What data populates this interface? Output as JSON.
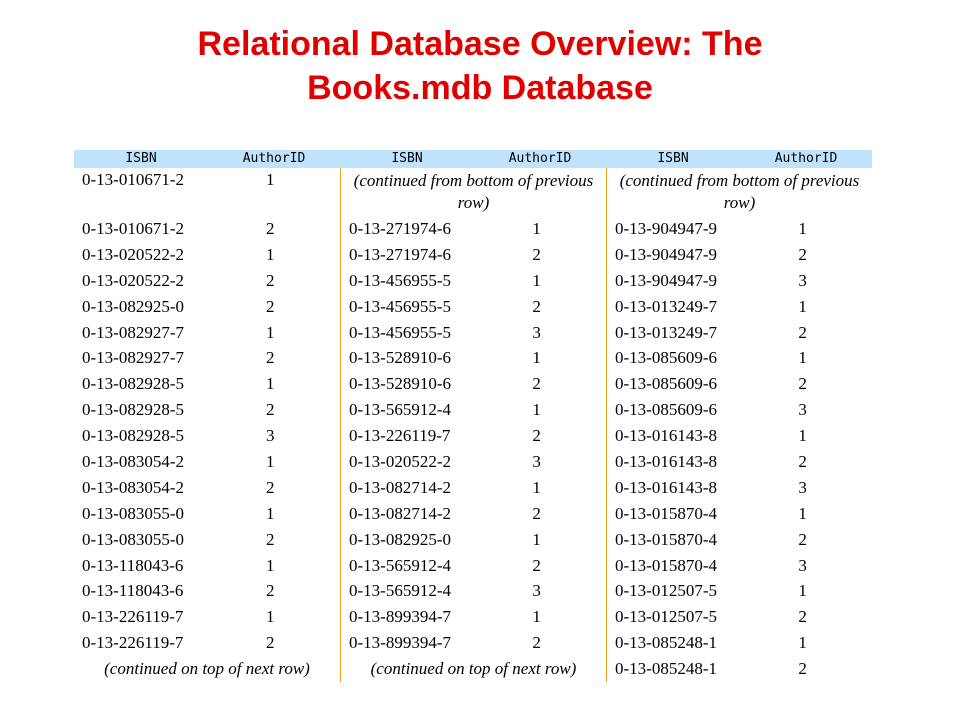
{
  "title": {
    "line1": "Relational Database Overview: The",
    "line2": "Books.mdb Database"
  },
  "table": {
    "headers": [
      "ISBN",
      "AuthorID",
      "ISBN",
      "AuthorID",
      "ISBN",
      "AuthorID"
    ],
    "columns": [
      {
        "top_note": "",
        "rows": [
          [
            "0-13-010671-2",
            "1"
          ],
          [
            "0-13-010671-2",
            "2"
          ],
          [
            "0-13-020522-2",
            "1"
          ],
          [
            "0-13-020522-2",
            "2"
          ],
          [
            "0-13-082925-0",
            "2"
          ],
          [
            "0-13-082927-7",
            "1"
          ],
          [
            "0-13-082927-7",
            "2"
          ],
          [
            "0-13-082928-5",
            "1"
          ],
          [
            "0-13-082928-5",
            "2"
          ],
          [
            "0-13-082928-5",
            "3"
          ],
          [
            "0-13-083054-2",
            "1"
          ],
          [
            "0-13-083054-2",
            "2"
          ],
          [
            "0-13-083055-0",
            "1"
          ],
          [
            "0-13-083055-0",
            "2"
          ],
          [
            "0-13-118043-6",
            "1"
          ],
          [
            "0-13-118043-6",
            "2"
          ],
          [
            "0-13-226119-7",
            "1"
          ],
          [
            "0-13-226119-7",
            "2"
          ]
        ],
        "bottom_note": "(continued on top of next row)"
      },
      {
        "top_note": "(continued from bottom of previous row)",
        "rows": [
          [
            "0-13-271974-6",
            "1"
          ],
          [
            "0-13-271974-6",
            "2"
          ],
          [
            "0-13-456955-5",
            "1"
          ],
          [
            "0-13-456955-5",
            "2"
          ],
          [
            "0-13-456955-5",
            "3"
          ],
          [
            "0-13-528910-6",
            "1"
          ],
          [
            "0-13-528910-6",
            "2"
          ],
          [
            "0-13-565912-4",
            "1"
          ],
          [
            "0-13-226119-7",
            "2"
          ],
          [
            "0-13-020522-2",
            "3"
          ],
          [
            "0-13-082714-2",
            "1"
          ],
          [
            "0-13-082714-2",
            "2"
          ],
          [
            "0-13-082925-0",
            "1"
          ],
          [
            "0-13-565912-4",
            "2"
          ],
          [
            "0-13-565912-4",
            "3"
          ],
          [
            "0-13-899394-7",
            "1"
          ],
          [
            "0-13-899394-7",
            "2"
          ]
        ],
        "bottom_note": "(continued on top of next row)"
      },
      {
        "top_note": "(continued from bottom of previous row)",
        "rows": [
          [
            "0-13-904947-9",
            "1"
          ],
          [
            "0-13-904947-9",
            "2"
          ],
          [
            "0-13-904947-9",
            "3"
          ],
          [
            "0-13-013249-7",
            "1"
          ],
          [
            "0-13-013249-7",
            "2"
          ],
          [
            "0-13-085609-6",
            "1"
          ],
          [
            "0-13-085609-6",
            "2"
          ],
          [
            "0-13-085609-6",
            "3"
          ],
          [
            "0-13-016143-8",
            "1"
          ],
          [
            "0-13-016143-8",
            "2"
          ],
          [
            "0-13-016143-8",
            "3"
          ],
          [
            "0-13-015870-4",
            "1"
          ],
          [
            "0-13-015870-4",
            "2"
          ],
          [
            "0-13-015870-4",
            "3"
          ],
          [
            "0-13-012507-5",
            "1"
          ],
          [
            "0-13-012507-5",
            "2"
          ],
          [
            "0-13-085248-1",
            "1"
          ],
          [
            "0-13-085248-1",
            "2"
          ]
        ],
        "bottom_note": ""
      }
    ]
  },
  "colors": {
    "title": "#e00000",
    "header_bg": "#bfe3ff",
    "column_divider": "#f0a020"
  }
}
